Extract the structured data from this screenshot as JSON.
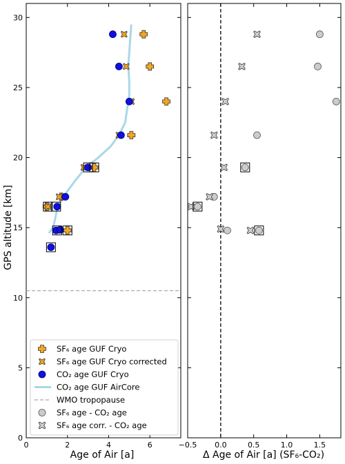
{
  "chart_data": [
    {
      "type": "scatter",
      "xlabel": "Age of Air [a]",
      "ylabel": "GPS altitude [km]",
      "xlim": [
        0,
        7.5
      ],
      "ylim": [
        0,
        31
      ],
      "xticks": [
        "0",
        "2",
        "4",
        "6"
      ],
      "yticks": [
        "0",
        "5",
        "10",
        "15",
        "20",
        "25",
        "30"
      ],
      "xtick_values": [
        0,
        2,
        4,
        6
      ],
      "ytick_values": [
        0,
        5,
        10,
        15,
        20,
        25,
        30
      ],
      "legend_position": "lower-left",
      "legend": [
        {
          "key": "sf6",
          "label": "SF₆ age GUF Cryo"
        },
        {
          "key": "sf6corr",
          "label": "SF₆ age GUF Cryo corrected"
        },
        {
          "key": "co2",
          "label": "CO₂ age GUF Cryo"
        },
        {
          "key": "aircore",
          "label": "CO₂ age GUF AirCore"
        },
        {
          "key": "tropopause",
          "label": "WMO tropopause"
        },
        {
          "key": "diff",
          "label": "SF₆ age - CO₂ age"
        },
        {
          "key": "diffcorr",
          "label": "SF₆ age corr. - CO₂ age"
        }
      ],
      "tropopause_altitude": 10.5,
      "series": {
        "sf6": [
          [
            5.7,
            28.8
          ],
          [
            6.0,
            26.5
          ],
          [
            6.8,
            24.0
          ],
          [
            5.1,
            21.6
          ],
          [
            3.3,
            19.3
          ],
          [
            1.7,
            17.2
          ],
          [
            1.0,
            16.5
          ],
          [
            2.0,
            14.8
          ]
        ],
        "sf6corr": [
          [
            4.75,
            28.8
          ],
          [
            4.85,
            26.5
          ],
          [
            5.1,
            24.0
          ],
          [
            4.5,
            21.6
          ],
          [
            2.8,
            19.3
          ],
          [
            1.6,
            17.2
          ],
          [
            1.05,
            16.5
          ],
          [
            1.5,
            14.8
          ]
        ],
        "co2": [
          [
            4.2,
            28.8
          ],
          [
            4.5,
            26.5
          ],
          [
            5.0,
            24.0
          ],
          [
            4.6,
            21.6
          ],
          [
            3.0,
            19.3
          ],
          [
            1.9,
            17.2
          ],
          [
            1.5,
            16.5
          ],
          [
            1.45,
            14.8
          ],
          [
            1.65,
            14.85
          ],
          [
            1.2,
            13.6
          ]
        ],
        "aircore": [
          [
            1.1,
            14.6
          ],
          [
            1.3,
            15.0
          ],
          [
            1.4,
            15.6
          ],
          [
            1.5,
            16.3
          ],
          [
            1.7,
            17.0
          ],
          [
            2.0,
            17.6
          ],
          [
            2.4,
            18.4
          ],
          [
            2.9,
            19.3
          ],
          [
            3.5,
            20.0
          ],
          [
            4.1,
            20.8
          ],
          [
            4.5,
            21.6
          ],
          [
            4.8,
            22.5
          ],
          [
            4.9,
            23.5
          ],
          [
            5.0,
            24.5
          ],
          [
            5.0,
            25.5
          ],
          [
            4.95,
            26.5
          ],
          [
            5.0,
            27.5
          ],
          [
            5.05,
            28.5
          ],
          [
            5.1,
            29.5
          ]
        ],
        "boxed": [
          [
            1.05,
            16.5
          ],
          [
            1.45,
            16.5
          ],
          [
            1.5,
            14.8
          ],
          [
            2.0,
            14.8
          ],
          [
            1.2,
            13.6
          ],
          [
            3.0,
            19.3
          ],
          [
            3.3,
            19.3
          ]
        ]
      }
    },
    {
      "type": "scatter",
      "xlabel": "Δ Age of Air [a] (SF₆-CO₂)",
      "xlim": [
        -0.5,
        1.82
      ],
      "ylim": [
        0,
        31
      ],
      "xticks": [
        "−0.5",
        "0.0",
        "0.5",
        "1.0",
        "1.5"
      ],
      "xtick_values": [
        -0.5,
        0.0,
        0.5,
        1.0,
        1.5
      ],
      "zero_line": 0,
      "series": {
        "diff": [
          [
            1.5,
            28.8
          ],
          [
            1.47,
            26.5
          ],
          [
            1.75,
            24.0
          ],
          [
            0.55,
            21.6
          ],
          [
            0.37,
            19.3
          ],
          [
            -0.1,
            17.2
          ],
          [
            -0.35,
            16.5
          ],
          [
            0.58,
            14.8
          ],
          [
            0.1,
            14.8
          ]
        ],
        "diffcorr": [
          [
            0.55,
            28.8
          ],
          [
            0.32,
            26.5
          ],
          [
            0.07,
            24.0
          ],
          [
            -0.1,
            21.6
          ],
          [
            0.05,
            19.3
          ],
          [
            -0.17,
            17.2
          ],
          [
            -0.45,
            16.5
          ],
          [
            0.45,
            14.8
          ],
          [
            0.0,
            14.9
          ]
        ],
        "boxed": [
          [
            0.37,
            19.3
          ],
          [
            -0.35,
            16.5
          ],
          [
            0.58,
            14.8
          ]
        ]
      }
    }
  ]
}
